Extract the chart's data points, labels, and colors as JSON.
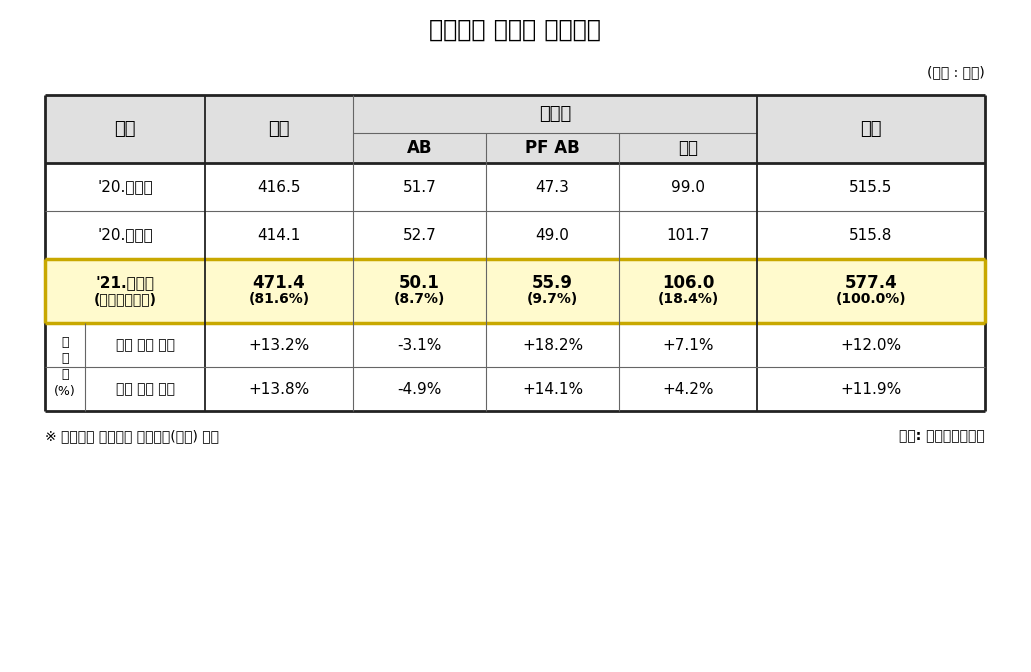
{
  "title": "단기사채 종류별 발행현황",
  "unit_label": "(단위 : 조원)",
  "yudongwha_label": "유동화",
  "col_headers": [
    "구분",
    "일반",
    "AB",
    "PF AB",
    "소계",
    "합계"
  ],
  "rows": [
    {
      "label": "'20.상반기",
      "label2": "",
      "ilban": "416.5",
      "ilban2": "",
      "ab": "51.7",
      "ab2": "",
      "pfab": "47.3",
      "pfab2": "",
      "sogye": "99.0",
      "sogye2": "",
      "hapgye": "515.5",
      "hapgye2": "",
      "highlight": false,
      "bold": false
    },
    {
      "label": "'20.하반기",
      "label2": "",
      "ilban": "414.1",
      "ilban2": "",
      "ab": "52.7",
      "ab2": "",
      "pfab": "49.0",
      "pfab2": "",
      "sogye": "101.7",
      "sogye2": "",
      "hapgye": "515.8",
      "hapgye2": "",
      "highlight": false,
      "bold": false
    },
    {
      "label": "'21.상반기",
      "label2": "(전체발행대비)",
      "ilban": "471.4",
      "ilban2": "(81.6%)",
      "ab": "50.1",
      "ab2": "(8.7%)",
      "pfab": "55.9",
      "pfab2": "(9.7%)",
      "sogye": "106.0",
      "sogye2": "(18.4%)",
      "hapgye": "577.4",
      "hapgye2": "(100.0%)",
      "highlight": true,
      "bold": true
    }
  ],
  "zgam_rows": [
    {
      "sublabel": "전년 동기 대비",
      "ilban": "+13.2%",
      "ab": "-3.1%",
      "pfab": "+18.2%",
      "sogye": "+7.1%",
      "hapgye": "+12.0%"
    },
    {
      "sublabel": "직전 반기 대비",
      "ilban": "+13.8%",
      "ab": "-4.9%",
      "pfab": "+14.1%",
      "sogye": "+4.2%",
      "hapgye": "+11.9%"
    }
  ],
  "zgam_label": "증\n감\n률\n(%)",
  "footnote": "※ 외화표시 단기사채 발행금액(환산) 포함",
  "source": "자료: 한국예탁결제원",
  "highlight_color": "#FFFACD",
  "header_bg": "#E0E0E0",
  "border_color": "#666666",
  "thick_border_color": "#222222",
  "highlight_border_color": "#C8A800"
}
